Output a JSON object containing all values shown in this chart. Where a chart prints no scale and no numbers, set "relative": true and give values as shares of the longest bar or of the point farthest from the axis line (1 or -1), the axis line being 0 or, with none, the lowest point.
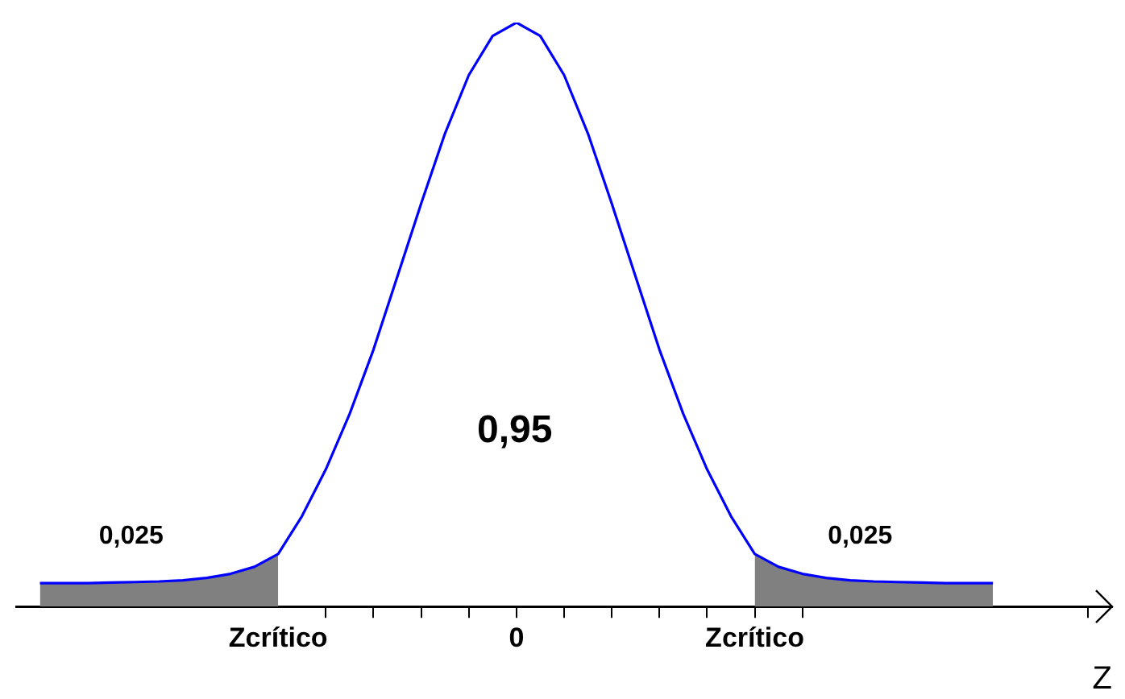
{
  "chart_data": {
    "type": "line",
    "relative": true,
    "xlabel": "Z",
    "categories": [
      null,
      null,
      null,
      null,
      null,
      null,
      null,
      null,
      null,
      null,
      null,
      "Zcrítico",
      null,
      null,
      null,
      null,
      null,
      null,
      null,
      null,
      null,
      "0",
      null,
      null,
      null,
      null,
      null,
      null,
      null,
      null,
      null,
      "Zcrítico",
      null,
      null,
      null,
      null,
      null,
      null,
      null,
      null,
      null,
      null,
      null,
      null,
      null,
      null,
      null
    ],
    "series": [
      {
        "color": "#0000ff",
        "values": [
          null,
          0.04,
          0.04,
          0.04,
          0.041,
          0.042,
          0.043,
          0.045,
          0.049,
          0.056,
          0.068,
          0.09,
          0.155,
          0.235,
          0.33,
          0.44,
          0.565,
          0.69,
          0.81,
          0.91,
          0.977,
          1,
          0.977,
          0.91,
          0.81,
          0.69,
          0.565,
          0.44,
          0.33,
          0.235,
          0.155,
          0.09,
          0.068,
          0.056,
          0.049,
          0.045,
          0.043,
          0.042,
          0.041,
          0.04,
          0.04,
          0.04,
          null,
          null,
          null,
          null,
          null
        ]
      },
      {
        "type": "area",
        "color": "#808080",
        "values": [
          null,
          0.04,
          0.04,
          0.04,
          0.041,
          0.042,
          0.043,
          0.045,
          0.049,
          0.056,
          0.068,
          0.09,
          null,
          null,
          null,
          null,
          null,
          null,
          null,
          null,
          null,
          null,
          null,
          null,
          null,
          null,
          null,
          null,
          null,
          null,
          null,
          0.09,
          0.068,
          0.056,
          0.049,
          0.045,
          0.043,
          0.042,
          0.041,
          0.04,
          0.04,
          0.04,
          null,
          null,
          null,
          null,
          null
        ]
      }
    ],
    "annotations": [
      "0,025",
      "0,95",
      "0,025"
    ],
    "legend": false,
    "marker": "none",
    "line_style": "solid"
  }
}
